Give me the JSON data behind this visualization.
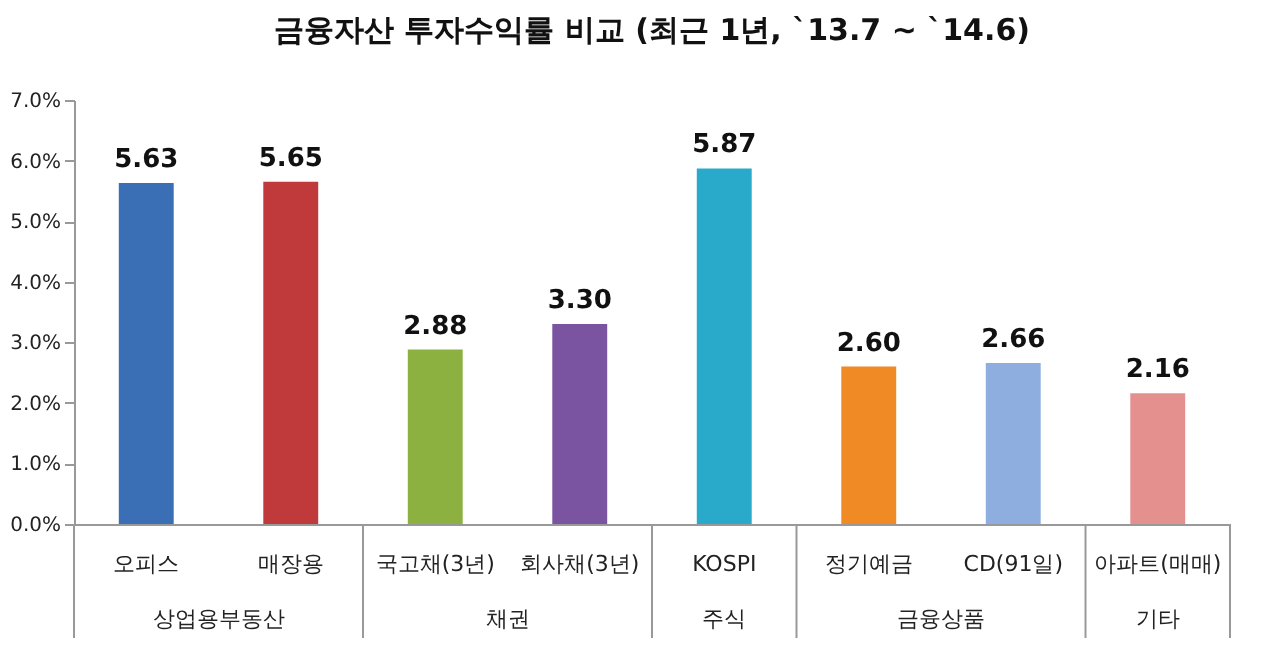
{
  "chart_data": {
    "type": "bar",
    "title": "금융자산 투자수익률 비교 (최근 1년, `13.7 ~ `14.6)",
    "categories": [
      "오피스",
      "매장용",
      "국고채(3년)",
      "회사채(3년)",
      "KOSPI",
      "정기예금",
      "CD(91일)",
      "아파트(매매)"
    ],
    "values": [
      5.63,
      5.65,
      2.88,
      3.3,
      5.87,
      2.6,
      2.66,
      2.16
    ],
    "value_labels": [
      "5.63",
      "5.65",
      "2.88",
      "3.30",
      "5.87",
      "2.60",
      "2.66",
      "2.16"
    ],
    "colors": [
      "#3a6fb5",
      "#c0393b",
      "#8cb140",
      "#7a54a0",
      "#2aaacb",
      "#f08a24",
      "#8eaee0",
      "#e4908f"
    ],
    "ylim": [
      0,
      7
    ],
    "yticks": [
      {
        "value": 0,
        "label": "0.0%"
      },
      {
        "value": 1,
        "label": "1.0%"
      },
      {
        "value": 2,
        "label": "2.0%"
      },
      {
        "value": 3,
        "label": "3.0%"
      },
      {
        "value": 4,
        "label": "4.0%"
      },
      {
        "value": 5,
        "label": "5.0%"
      },
      {
        "value": 6,
        "label": "6.0%"
      },
      {
        "value": 7,
        "label": "7.0%"
      }
    ],
    "annotations": [
      "상업용부동산",
      "채권",
      "주식",
      "금융상품",
      "기타"
    ]
  }
}
